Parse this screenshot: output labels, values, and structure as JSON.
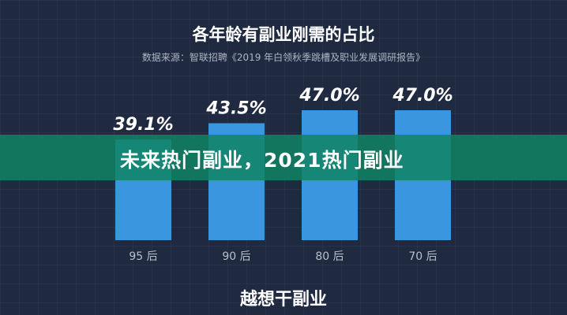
{
  "chart_data": {
    "type": "bar",
    "title": "各年龄有副业刚需的占比",
    "subtitle": "数据来源：智联招聘《2019 年白领秋季跳槽及职业发展调研报告》",
    "categories": [
      "95 后",
      "90 后",
      "80 后",
      "70 后"
    ],
    "values": [
      39.1,
      43.5,
      47.0,
      47.0
    ],
    "data_labels": [
      "39.1%",
      "43.5%",
      "47.0%",
      "47.0%"
    ],
    "xlabel": "越想干副业",
    "ylim": [
      0,
      50
    ],
    "grid": true,
    "bar_color": "#3a97df"
  },
  "banner": {
    "text": "未来热门副业，2021热门副业",
    "color": "#10826a"
  }
}
